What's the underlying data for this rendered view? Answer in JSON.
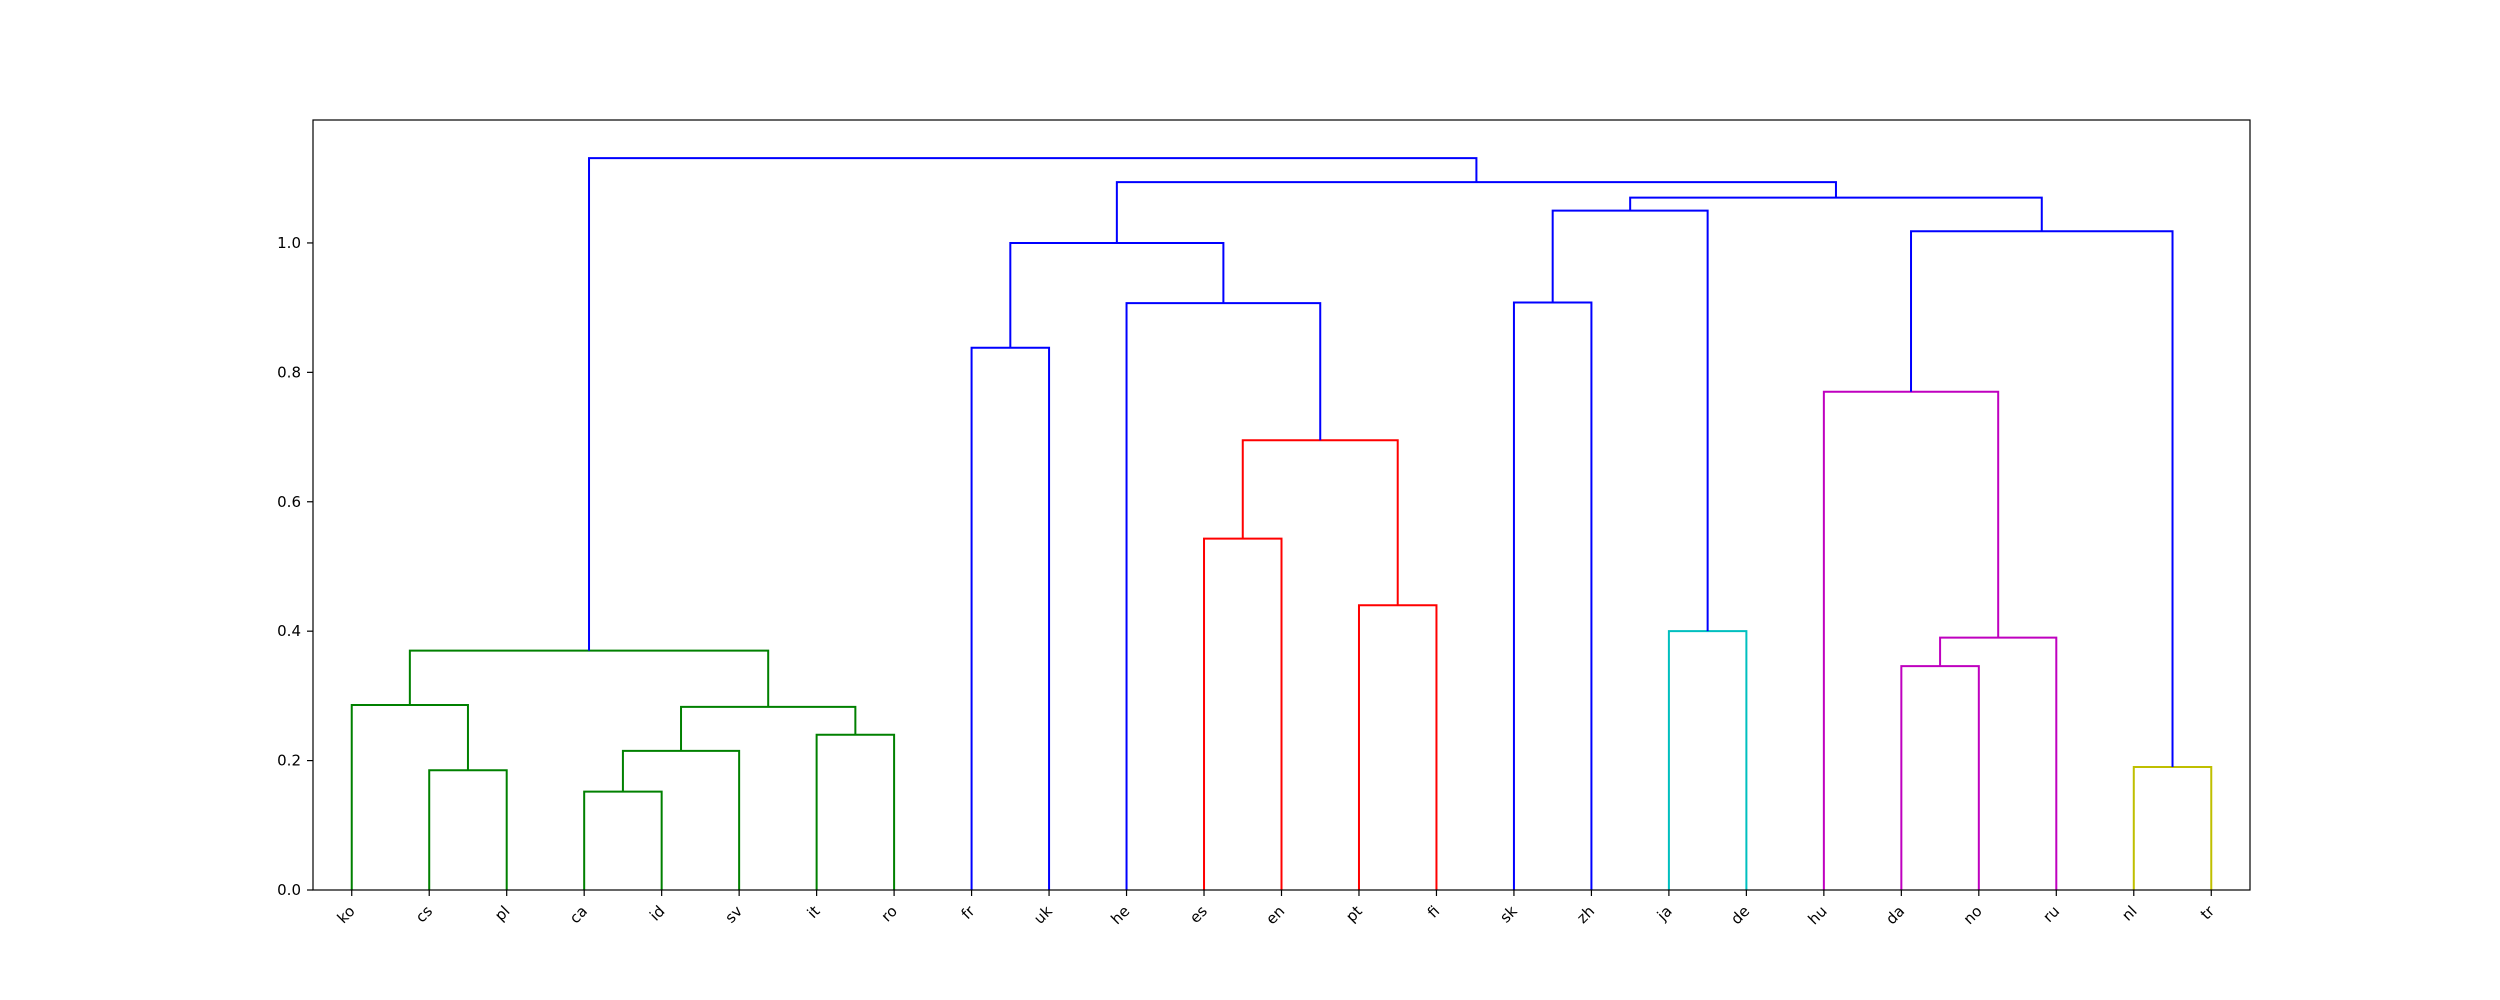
{
  "chart_data": {
    "type": "dendrogram",
    "title": "",
    "xlabel": "",
    "ylabel": "",
    "ylim": [
      0,
      1.19
    ],
    "yticks": [
      0.0,
      0.2,
      0.4,
      0.6,
      0.8,
      1.0
    ],
    "ytick_labels": [
      "0.0",
      "0.2",
      "0.4",
      "0.6",
      "0.8",
      "1.0"
    ],
    "leaves": [
      "ko",
      "cs",
      "pl",
      "ca",
      "id",
      "sv",
      "it",
      "ro",
      "fr",
      "uk",
      "he",
      "es",
      "en",
      "pt",
      "fi",
      "sk",
      "zh",
      "ja",
      "de",
      "hu",
      "da",
      "no",
      "ru",
      "nl",
      "tr"
    ],
    "merges": [
      {
        "left": "ca",
        "right": "id",
        "height": 0.152,
        "color": "#008000"
      },
      {
        "left": "cs",
        "right": "pl",
        "height": 0.185,
        "color": "#008000"
      },
      {
        "left": "nl",
        "right": "tr",
        "height": 0.19,
        "color": "#bfbf00"
      },
      {
        "left": "ca|id",
        "right": "sv",
        "height": 0.215,
        "color": "#008000"
      },
      {
        "left": "it",
        "right": "ro",
        "height": 0.24,
        "color": "#008000"
      },
      {
        "left": "ca|id|sv",
        "right": "it|ro",
        "height": 0.283,
        "color": "#008000"
      },
      {
        "left": "ko",
        "right": "cs|pl",
        "height": 0.286,
        "color": "#008000"
      },
      {
        "left": "da",
        "right": "no",
        "height": 0.346,
        "color": "#bf00bf"
      },
      {
        "left": "ko|cs|pl",
        "right": "ca|id|sv|it|ro",
        "height": 0.37,
        "color": "#008000"
      },
      {
        "left": "da|no",
        "right": "ru",
        "height": 0.39,
        "color": "#bf00bf"
      },
      {
        "left": "ja",
        "right": "de",
        "height": 0.4,
        "color": "#00bfbf"
      },
      {
        "left": "pt",
        "right": "fi",
        "height": 0.44,
        "color": "#ff0000"
      },
      {
        "left": "es",
        "right": "en",
        "height": 0.543,
        "color": "#ff0000"
      },
      {
        "left": "es|en",
        "right": "pt|fi",
        "height": 0.695,
        "color": "#ff0000"
      },
      {
        "left": "hu",
        "right": "da|no|ru",
        "height": 0.77,
        "color": "#bf00bf"
      },
      {
        "left": "fr",
        "right": "uk",
        "height": 0.838,
        "color": "#0000ff"
      },
      {
        "left": "he",
        "right": "es|en|pt|fi",
        "height": 0.907,
        "color": "#0000ff"
      },
      {
        "left": "sk",
        "right": "zh",
        "height": 0.908,
        "color": "#0000ff"
      },
      {
        "left": "fr|uk",
        "right": "he|es|en|pt|fi",
        "height": 1.0,
        "color": "#0000ff"
      },
      {
        "left": "hu|da|no|ru",
        "right": "nl|tr",
        "height": 1.018,
        "color": "#0000ff"
      },
      {
        "left": "sk|zh",
        "right": "ja|de",
        "height": 1.05,
        "color": "#0000ff"
      },
      {
        "left": "sk|zh|ja|de",
        "right": "hu|da|no|ru|nl|tr",
        "height": 1.07,
        "color": "#0000ff"
      },
      {
        "left": "fr|uk|he|es|en|pt|fi",
        "right": "sk|zh|ja|de|hu|da|no|ru|nl|tr",
        "height": 1.094,
        "color": "#0000ff"
      },
      {
        "left": "ko|cs|pl|ca|id|sv|it|ro",
        "right": "fr|uk|he|es|en|pt|fi|sk|zh|ja|de|hu|da|no|ru|nl|tr",
        "height": 1.131,
        "color": "#0000ff"
      }
    ],
    "grid": false,
    "legend": "none"
  }
}
